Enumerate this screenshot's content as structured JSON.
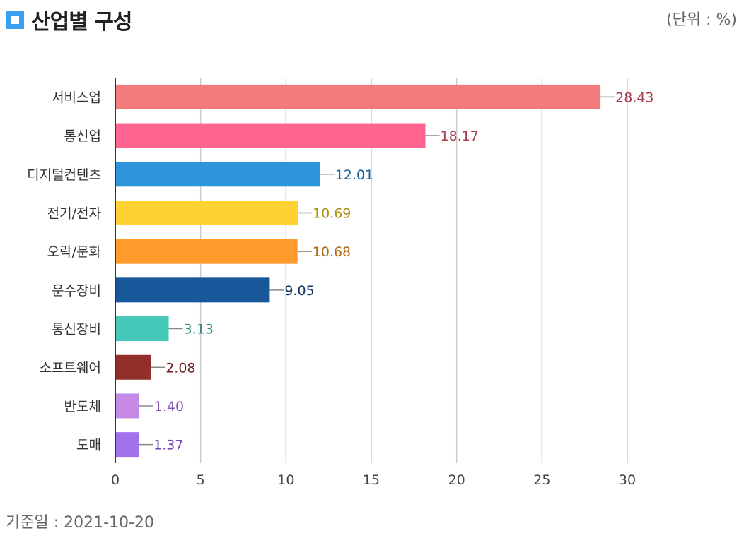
{
  "header": {
    "title": "산업별 구성",
    "unit": "(단위 : %)"
  },
  "footer": {
    "base_date": "기준일 : 2021-10-20"
  },
  "colors": {
    "title_icon": "#3aa0f0",
    "grid": "#cccccc",
    "axis": "#333333"
  },
  "chart_data": {
    "type": "bar",
    "orientation": "horizontal",
    "categories": [
      "서비스업",
      "통신업",
      "디지털컨텐츠",
      "전기/전자",
      "오락/문화",
      "운수장비",
      "통신장비",
      "소프트웨어",
      "반도체",
      "도매"
    ],
    "values": [
      28.43,
      18.17,
      12.01,
      10.69,
      10.68,
      9.05,
      3.13,
      2.08,
      1.4,
      1.37
    ],
    "value_labels": [
      "28.43",
      "18.17",
      "12.01",
      "10.69",
      "10.68",
      "9.05",
      "3.13",
      "2.08",
      "1.40",
      "1.37"
    ],
    "bar_colors": [
      "#f47b7b",
      "#ff6590",
      "#2d95d9",
      "#ffd233",
      "#ff9a2d",
      "#18589a",
      "#45c8b8",
      "#922f2a",
      "#c48ae6",
      "#a272ec"
    ],
    "label_colors": [
      "#a83d4b",
      "#a83d4b",
      "#1a5f94",
      "#b08d12",
      "#b06a16",
      "#0f3566",
      "#2d8c80",
      "#6b1f1c",
      "#8a55b0",
      "#6f45b8"
    ],
    "xlim": [
      0,
      30
    ],
    "xticks": [
      "0",
      "5",
      "10",
      "15",
      "20",
      "25",
      "30"
    ],
    "grid": true,
    "legend": "none"
  }
}
